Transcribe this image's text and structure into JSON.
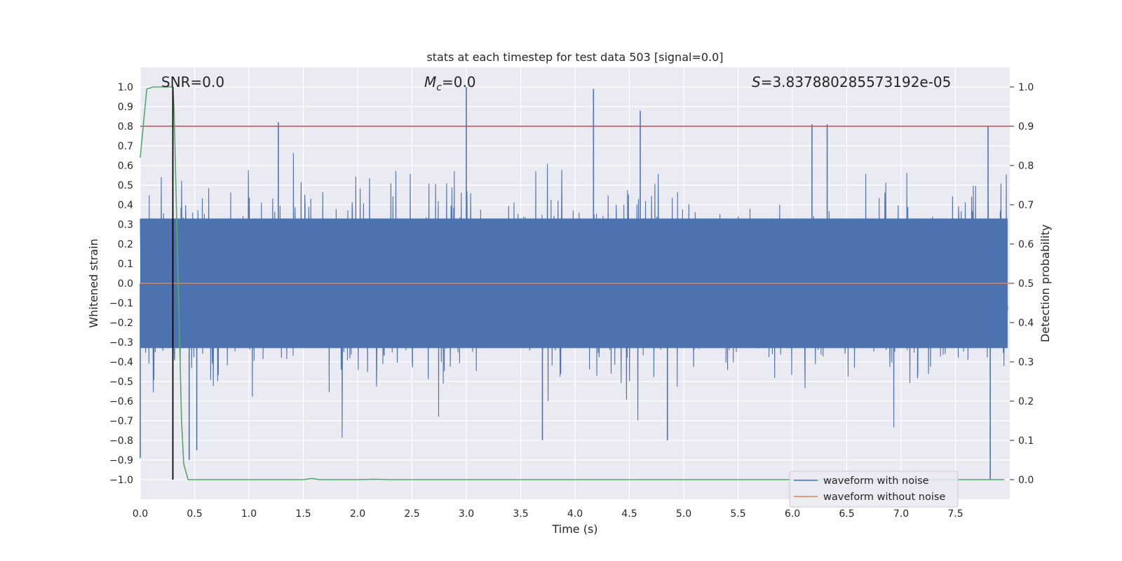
{
  "chart_data": {
    "type": "line",
    "title": "stats at each timestep for test data 503 [signal=0.0]",
    "xlabel": "Time (s)",
    "ylabel": "Whitened strain",
    "y2label": "Detection probability",
    "xlim": [
      0.0,
      8.0
    ],
    "ylim": [
      -1.1,
      1.1
    ],
    "y2lim": [
      -0.05,
      1.05
    ],
    "grid": true,
    "x_ticks": [
      "0.0",
      "0.5",
      "1.0",
      "1.5",
      "2.0",
      "2.5",
      "3.0",
      "3.5",
      "4.0",
      "4.5",
      "5.0",
      "5.5",
      "6.0",
      "6.5",
      "7.0",
      "7.5"
    ],
    "x_tick_values": [
      0.0,
      0.5,
      1.0,
      1.5,
      2.0,
      2.5,
      3.0,
      3.5,
      4.0,
      4.5,
      5.0,
      5.5,
      6.0,
      6.5,
      7.0,
      7.5
    ],
    "y_ticks": [
      "1.0",
      "0.9",
      "0.8",
      "0.7",
      "0.6",
      "0.5",
      "0.4",
      "0.3",
      "0.2",
      "0.1",
      "0.0",
      "−0.1",
      "−0.2",
      "−0.3",
      "−0.4",
      "−0.5",
      "−0.6",
      "−0.7",
      "−0.8",
      "−0.9",
      "−1.0"
    ],
    "y_tick_values": [
      1.0,
      0.9,
      0.8,
      0.7,
      0.6,
      0.5,
      0.4,
      0.3,
      0.2,
      0.1,
      0.0,
      -0.1,
      -0.2,
      -0.3,
      -0.4,
      -0.5,
      -0.6,
      -0.7,
      -0.8,
      -0.9,
      -1.0
    ],
    "y2_ticks": [
      "1.0",
      "0.9",
      "0.8",
      "0.7",
      "0.6",
      "0.5",
      "0.4",
      "0.3",
      "0.2",
      "0.1",
      "0.0"
    ],
    "y2_tick_values": [
      1.0,
      0.9,
      0.8,
      0.7,
      0.6,
      0.5,
      0.4,
      0.3,
      0.2,
      0.1,
      0.0
    ],
    "annotations": {
      "snr": "SNR=0.0",
      "mc_symbol": "M",
      "mc_sub": "c",
      "mc_value": "=0.0",
      "s_symbol": "S",
      "s_value": "=3.837880285573192e-05"
    },
    "threshold": {
      "value": 0.9,
      "axis": "y2",
      "color": "#c44e52"
    },
    "marker_line": {
      "x": 0.3,
      "y_from": -1.0,
      "y_to": 1.0,
      "color": "#000000"
    },
    "legend": {
      "placement": "lower-right",
      "entries": [
        {
          "label": "waveform with noise",
          "color": "#4c72b0"
        },
        {
          "label": "waveform without noise",
          "color": "#dd8452"
        }
      ]
    },
    "series": [
      {
        "name": "waveform with noise",
        "axis": "y",
        "color": "#4c72b0",
        "description": "dense whitened-strain noise, typical amplitude about 0.35, extremes near +1.0 at 3.0 s and -1.0 at 7.8 s",
        "peaks": [
          {
            "x": 3.0,
            "y": 1.0
          },
          {
            "x": 4.17,
            "y": 0.99
          },
          {
            "x": 4.6,
            "y": 0.88
          },
          {
            "x": 1.27,
            "y": 0.82
          },
          {
            "x": 6.18,
            "y": 0.81
          },
          {
            "x": 6.32,
            "y": 0.81
          },
          {
            "x": 7.8,
            "y": 0.8
          },
          {
            "x": 7.82,
            "y": -1.0
          },
          {
            "x": 0.0,
            "y": -0.89
          },
          {
            "x": 0.45,
            "y": -0.9
          },
          {
            "x": 0.52,
            "y": -0.85
          },
          {
            "x": 4.85,
            "y": -0.8
          },
          {
            "x": 3.7,
            "y": -0.8
          }
        ]
      },
      {
        "name": "waveform without noise",
        "axis": "y",
        "color": "#dd8452",
        "description": "flat at 0.0",
        "x": [
          0.0,
          8.0
        ],
        "y": [
          0.0,
          0.0
        ]
      },
      {
        "name": "detection probability",
        "axis": "y2",
        "color": "#55a868",
        "x": [
          0.0,
          0.06,
          0.12,
          0.2,
          0.3,
          0.31,
          0.33,
          0.36,
          0.38,
          0.4,
          0.44,
          0.6,
          1.0,
          1.5,
          1.58,
          1.65,
          2.0,
          2.15,
          2.3,
          3.0,
          5.0,
          7.0,
          7.95
        ],
        "y": [
          0.82,
          0.995,
          1.0,
          1.0,
          1.0,
          0.95,
          0.72,
          0.38,
          0.15,
          0.04,
          0.0,
          0.0,
          0.0,
          0.0,
          0.003,
          0.0,
          0.0,
          0.001,
          0.0,
          0.0,
          0.0,
          0.0,
          0.0
        ]
      }
    ]
  }
}
